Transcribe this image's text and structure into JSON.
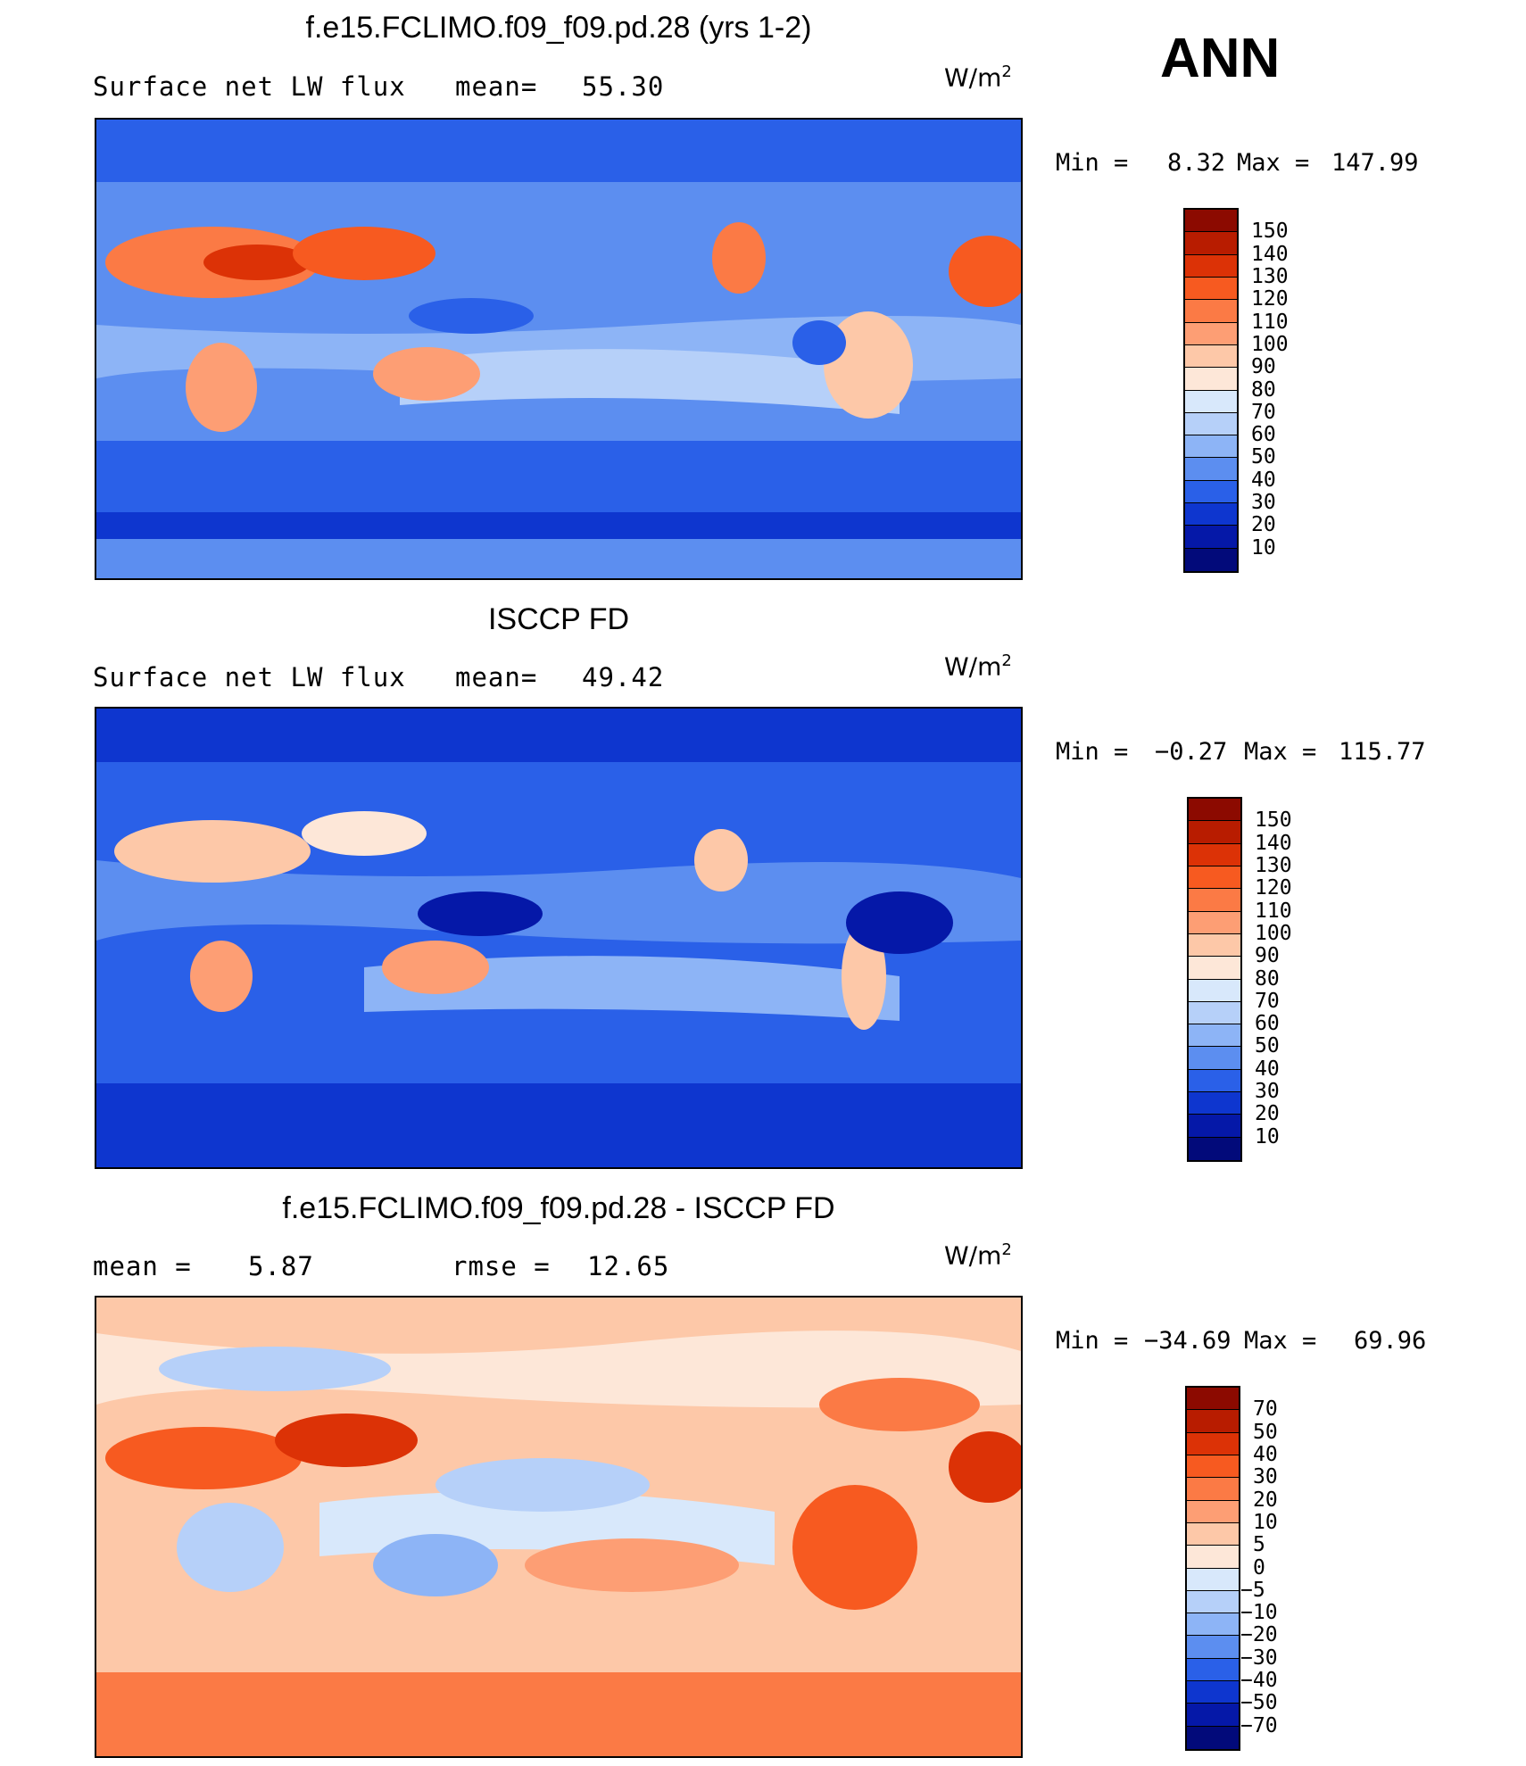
{
  "season": "ANN",
  "panels": [
    {
      "title": "f.e15.FCLIMO.f09_f09.pd.28 (yrs 1-2)",
      "left_label": "Surface net LW flux",
      "mid_label": "mean=",
      "mid_value": "55.30",
      "units": "W/m",
      "units_sup": "2",
      "min_label": "Min =",
      "min_value": "8.32",
      "max_label": "Max =",
      "max_value": "147.99",
      "levels": [
        "150",
        "140",
        "130",
        "120",
        "110",
        "100",
        "90",
        "80",
        "70",
        "60",
        "50",
        "40",
        "30",
        "20",
        "10"
      ],
      "colors": [
        "#8c0a00",
        "#b81c00",
        "#dc3206",
        "#f75a20",
        "#fb7a45",
        "#fd9e74",
        "#fdc8a8",
        "#fde7d8",
        "#d8e8fb",
        "#b6d0f9",
        "#8db4f6",
        "#5c8ef0",
        "#2a60e8",
        "#0e36cf",
        "#0518a8",
        "#020a7a"
      ]
    },
    {
      "title": "ISCCP FD",
      "left_label": "Surface net LW flux",
      "mid_label": "mean=",
      "mid_value": "49.42",
      "units": "W/m",
      "units_sup": "2",
      "min_label": "Min =",
      "min_value": "−0.27",
      "max_label": "Max =",
      "max_value": "115.77",
      "levels": [
        "150",
        "140",
        "130",
        "120",
        "110",
        "100",
        "90",
        "80",
        "70",
        "60",
        "50",
        "40",
        "30",
        "20",
        "10"
      ],
      "colors": [
        "#8c0a00",
        "#b81c00",
        "#dc3206",
        "#f75a20",
        "#fb7a45",
        "#fd9e74",
        "#fdc8a8",
        "#fde7d8",
        "#d8e8fb",
        "#b6d0f9",
        "#8db4f6",
        "#5c8ef0",
        "#2a60e8",
        "#0e36cf",
        "#0518a8",
        "#020a7a"
      ]
    },
    {
      "title": "f.e15.FCLIMO.f09_f09.pd.28 - ISCCP FD",
      "left_label": "mean =",
      "left_value": "5.87",
      "mid_label": "rmse =",
      "mid_value": "12.65",
      "units": "W/m",
      "units_sup": "2",
      "min_label": "Min =",
      "min_value": "−34.69",
      "max_label": "Max =",
      "max_value": "69.96",
      "levels": [
        "70",
        "50",
        "40",
        "30",
        "20",
        "10",
        "5",
        "0",
        "−5",
        "−10",
        "−20",
        "−30",
        "−40",
        "−50",
        "−70"
      ],
      "colors": [
        "#8c0a00",
        "#b81c00",
        "#dc3206",
        "#f75a20",
        "#fb7a45",
        "#fd9e74",
        "#fdc8a8",
        "#fde7d8",
        "#d8e8fb",
        "#b6d0f9",
        "#8db4f6",
        "#5c8ef0",
        "#2a60e8",
        "#0e36cf",
        "#0518a8",
        "#020a7a"
      ]
    }
  ],
  "chart_data": [
    {
      "type": "heatmap",
      "title": "f.e15.FCLIMO.f09_f09.pd.28 (yrs 1-2)",
      "variable": "Surface net LW flux",
      "units": "W/m2",
      "mean": 55.3,
      "min": 8.32,
      "max": 147.99,
      "contour_levels": [
        10,
        20,
        30,
        40,
        50,
        60,
        70,
        80,
        90,
        100,
        110,
        120,
        130,
        140,
        150
      ]
    },
    {
      "type": "heatmap",
      "title": "ISCCP FD",
      "variable": "Surface net LW flux",
      "units": "W/m2",
      "mean": 49.42,
      "min": -0.27,
      "max": 115.77,
      "contour_levels": [
        10,
        20,
        30,
        40,
        50,
        60,
        70,
        80,
        90,
        100,
        110,
        120,
        130,
        140,
        150
      ]
    },
    {
      "type": "heatmap",
      "title": "f.e15.FCLIMO.f09_f09.pd.28 - ISCCP FD",
      "units": "W/m2",
      "mean": 5.87,
      "rmse": 12.65,
      "min": -34.69,
      "max": 69.96,
      "contour_levels": [
        -70,
        -50,
        -40,
        -30,
        -20,
        -10,
        -5,
        0,
        5,
        10,
        20,
        30,
        40,
        50,
        70
      ]
    }
  ]
}
